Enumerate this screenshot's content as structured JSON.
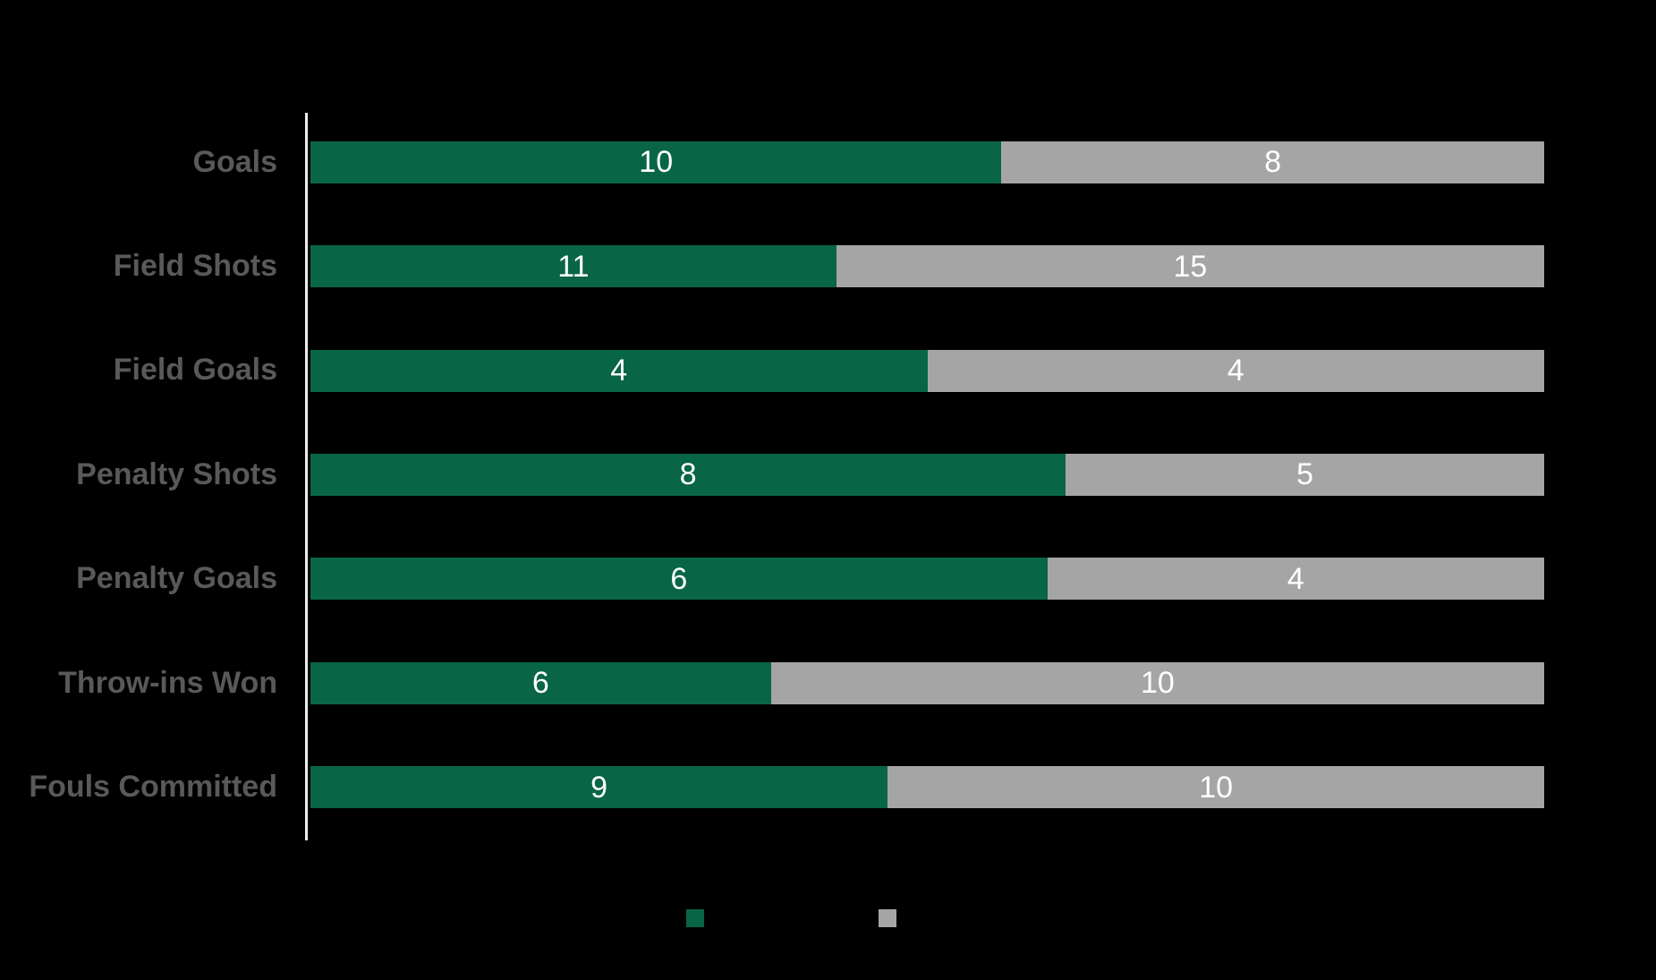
{
  "chart_data": {
    "type": "bar",
    "variant": "horizontal-100-percent-stacked",
    "title": "",
    "categories": [
      "Goals",
      "Field Shots",
      "Field Goals",
      "Penalty Shots",
      "Penalty Goals",
      "Throw-ins Won",
      "Fouls Committed"
    ],
    "series": [
      {
        "legend_label": "",
        "color": "#086546",
        "values": [
          10,
          11,
          4,
          8,
          6,
          6,
          9
        ]
      },
      {
        "legend_label": "",
        "color": "#a5a5a5",
        "values": [
          8,
          15,
          4,
          5,
          4,
          10,
          10
        ]
      }
    ],
    "legend": {
      "position": "bottom",
      "items": [
        {
          "label": "",
          "swatch_color": "#086546"
        },
        {
          "label": "",
          "swatch_color": "#a5a5a5"
        }
      ]
    },
    "layout_hints": {
      "background_color": "#000000",
      "category_label_color": "#595959",
      "value_label_color": "#ffffff",
      "axis_line_color": "#ededed",
      "grid": false,
      "bars_span_full_width": true
    }
  }
}
